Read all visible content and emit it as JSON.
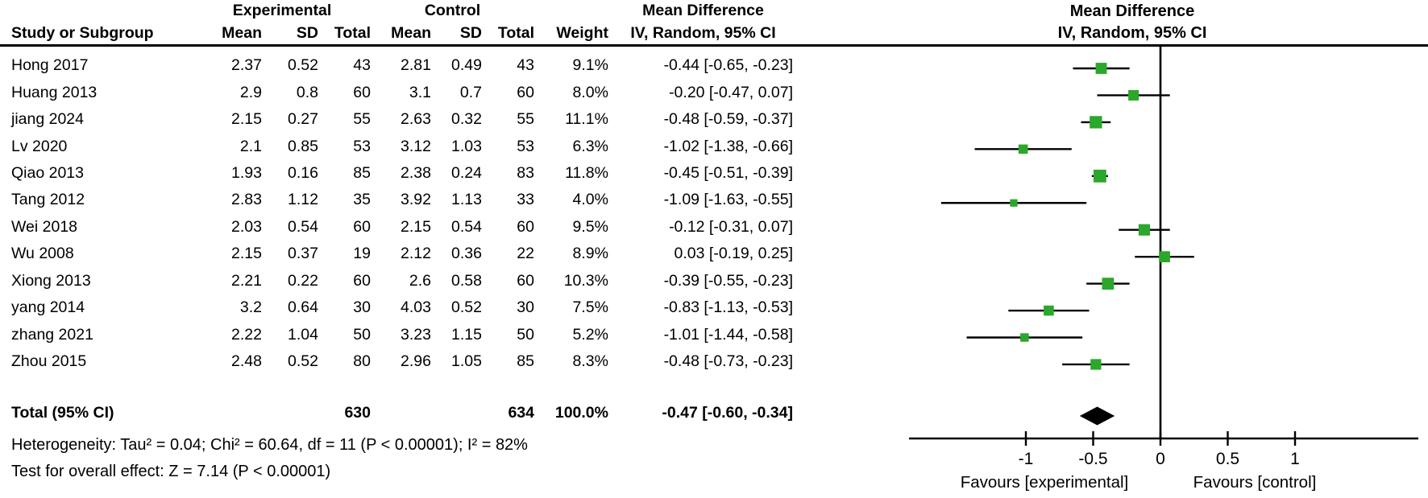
{
  "table": {
    "group_headers": {
      "experimental": "Experimental",
      "control": "Control",
      "mean_difference": "Mean Difference"
    },
    "columns": {
      "study": "Study or Subgroup",
      "mean1": "Mean",
      "sd1": "SD",
      "total1": "Total",
      "mean2": "Mean",
      "sd2": "SD",
      "total2": "Total",
      "weight": "Weight",
      "ci": "IV, Random, 95% CI"
    },
    "rows": [
      {
        "study": "Hong 2017",
        "mean1": "2.37",
        "sd1": "0.52",
        "total1": "43",
        "mean2": "2.81",
        "sd2": "0.49",
        "total2": "43",
        "weight": "9.1%",
        "ci": "-0.44 [-0.65, -0.23]"
      },
      {
        "study": "Huang 2013",
        "mean1": "2.9",
        "sd1": "0.8",
        "total1": "60",
        "mean2": "3.1",
        "sd2": "0.7",
        "total2": "60",
        "weight": "8.0%",
        "ci": "-0.20 [-0.47, 0.07]"
      },
      {
        "study": "jiang 2024",
        "mean1": "2.15",
        "sd1": "0.27",
        "total1": "55",
        "mean2": "2.63",
        "sd2": "0.32",
        "total2": "55",
        "weight": "11.1%",
        "ci": "-0.48 [-0.59, -0.37]"
      },
      {
        "study": "Lv 2020",
        "mean1": "2.1",
        "sd1": "0.85",
        "total1": "53",
        "mean2": "3.12",
        "sd2": "1.03",
        "total2": "53",
        "weight": "6.3%",
        "ci": "-1.02 [-1.38, -0.66]"
      },
      {
        "study": "Qiao 2013",
        "mean1": "1.93",
        "sd1": "0.16",
        "total1": "85",
        "mean2": "2.38",
        "sd2": "0.24",
        "total2": "83",
        "weight": "11.8%",
        "ci": "-0.45 [-0.51, -0.39]"
      },
      {
        "study": "Tang 2012",
        "mean1": "2.83",
        "sd1": "1.12",
        "total1": "35",
        "mean2": "3.92",
        "sd2": "1.13",
        "total2": "33",
        "weight": "4.0%",
        "ci": "-1.09 [-1.63, -0.55]"
      },
      {
        "study": "Wei 2018",
        "mean1": "2.03",
        "sd1": "0.54",
        "total1": "60",
        "mean2": "2.15",
        "sd2": "0.54",
        "total2": "60",
        "weight": "9.5%",
        "ci": "-0.12 [-0.31, 0.07]"
      },
      {
        "study": "Wu 2008",
        "mean1": "2.15",
        "sd1": "0.37",
        "total1": "19",
        "mean2": "2.12",
        "sd2": "0.36",
        "total2": "22",
        "weight": "8.9%",
        "ci": "0.03 [-0.19, 0.25]"
      },
      {
        "study": "Xiong 2013",
        "mean1": "2.21",
        "sd1": "0.22",
        "total1": "60",
        "mean2": "2.6",
        "sd2": "0.58",
        "total2": "60",
        "weight": "10.3%",
        "ci": "-0.39 [-0.55, -0.23]"
      },
      {
        "study": "yang 2014",
        "mean1": "3.2",
        "sd1": "0.64",
        "total1": "30",
        "mean2": "4.03",
        "sd2": "0.52",
        "total2": "30",
        "weight": "7.5%",
        "ci": "-0.83 [-1.13, -0.53]"
      },
      {
        "study": "zhang 2021",
        "mean1": "2.22",
        "sd1": "1.04",
        "total1": "50",
        "mean2": "3.23",
        "sd2": "1.15",
        "total2": "50",
        "weight": "5.2%",
        "ci": "-1.01 [-1.44, -0.58]"
      },
      {
        "study": "Zhou 2015",
        "mean1": "2.48",
        "sd1": "0.52",
        "total1": "80",
        "mean2": "2.96",
        "sd2": "1.05",
        "total2": "85",
        "weight": "8.3%",
        "ci": "-0.48 [-0.73, -0.23]"
      }
    ],
    "total_row": {
      "label": "Total (95% CI)",
      "total1": "630",
      "total2": "634",
      "weight": "100.0%",
      "ci": "-0.47 [-0.60, -0.34]"
    },
    "footer": {
      "heterogeneity": "Heterogeneity: Tau² = 0.04; Chi² = 60.64, df = 11 (P < 0.00001); I² = 82%",
      "overall_effect": "Test for overall effect: Z = 7.14 (P < 0.00001)"
    }
  },
  "plot_header": {
    "line1": "Mean Difference",
    "line2": "IV, Random, 95% CI"
  },
  "chart_data": {
    "type": "forest",
    "effect_measure": "Mean Difference (IV, Random, 95% CI)",
    "axis_ticks": [
      -1,
      -0.5,
      0,
      0.5,
      1
    ],
    "axis_tick_labels": [
      "-1",
      "-0.5",
      "0",
      "0.5",
      "1"
    ],
    "axis_range": [
      -1.87,
      1.91
    ],
    "xlabel_left": "Favours [experimental]",
    "xlabel_right": "Favours [control]",
    "marker_color": "#2BA72B",
    "diamond_color": "#000000",
    "line_color": "#000000",
    "studies": [
      {
        "name": "Hong 2017",
        "md": -0.44,
        "lo": -0.65,
        "hi": -0.23,
        "weight": 9.1
      },
      {
        "name": "Huang 2013",
        "md": -0.2,
        "lo": -0.47,
        "hi": 0.07,
        "weight": 8.0
      },
      {
        "name": "jiang 2024",
        "md": -0.48,
        "lo": -0.59,
        "hi": -0.37,
        "weight": 11.1
      },
      {
        "name": "Lv 2020",
        "md": -1.02,
        "lo": -1.38,
        "hi": -0.66,
        "weight": 6.3
      },
      {
        "name": "Qiao 2013",
        "md": -0.45,
        "lo": -0.51,
        "hi": -0.39,
        "weight": 11.8
      },
      {
        "name": "Tang 2012",
        "md": -1.09,
        "lo": -1.63,
        "hi": -0.55,
        "weight": 4.0
      },
      {
        "name": "Wei 2018",
        "md": -0.12,
        "lo": -0.31,
        "hi": 0.07,
        "weight": 9.5
      },
      {
        "name": "Wu 2008",
        "md": 0.03,
        "lo": -0.19,
        "hi": 0.25,
        "weight": 8.9
      },
      {
        "name": "Xiong 2013",
        "md": -0.39,
        "lo": -0.55,
        "hi": -0.23,
        "weight": 10.3
      },
      {
        "name": "yang 2014",
        "md": -0.83,
        "lo": -1.13,
        "hi": -0.53,
        "weight": 7.5
      },
      {
        "name": "zhang 2021",
        "md": -1.01,
        "lo": -1.44,
        "hi": -0.58,
        "weight": 5.2
      },
      {
        "name": "Zhou 2015",
        "md": -0.48,
        "lo": -0.73,
        "hi": -0.23,
        "weight": 8.3
      }
    ],
    "total": {
      "label": "Total (95% CI)",
      "md": -0.47,
      "lo": -0.6,
      "hi": -0.34,
      "weight": 100.0
    }
  }
}
